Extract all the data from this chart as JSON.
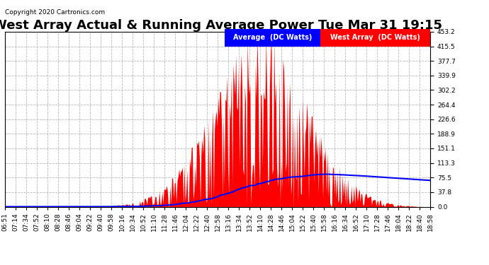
{
  "title": "West Array Actual & Running Average Power Tue Mar 31 19:15",
  "copyright": "Copyright 2020 Cartronics.com",
  "legend_labels": [
    "Average  (DC Watts)",
    "West Array  (DC Watts)"
  ],
  "ylim": [
    0.0,
    453.2
  ],
  "yticks": [
    0.0,
    37.8,
    75.5,
    113.3,
    151.1,
    188.9,
    226.6,
    264.4,
    302.2,
    339.9,
    377.7,
    415.5,
    453.2
  ],
  "background_color": "#ffffff",
  "grid_color": "#b0b0b0",
  "fill_color": "#ff0000",
  "avg_line_color": "#0000ff",
  "title_fontsize": 13,
  "tick_fontsize": 6.5,
  "time_labels": [
    "06:51",
    "07:14",
    "07:34",
    "07:52",
    "08:10",
    "08:28",
    "08:46",
    "09:04",
    "09:22",
    "09:40",
    "09:58",
    "10:16",
    "10:34",
    "10:52",
    "11:10",
    "11:28",
    "11:46",
    "12:04",
    "12:22",
    "12:40",
    "12:58",
    "13:16",
    "13:34",
    "13:52",
    "14:10",
    "14:28",
    "14:46",
    "15:04",
    "15:22",
    "15:40",
    "15:58",
    "16:16",
    "16:34",
    "16:52",
    "17:10",
    "17:28",
    "17:46",
    "18:04",
    "18:22",
    "18:40",
    "18:58"
  ]
}
